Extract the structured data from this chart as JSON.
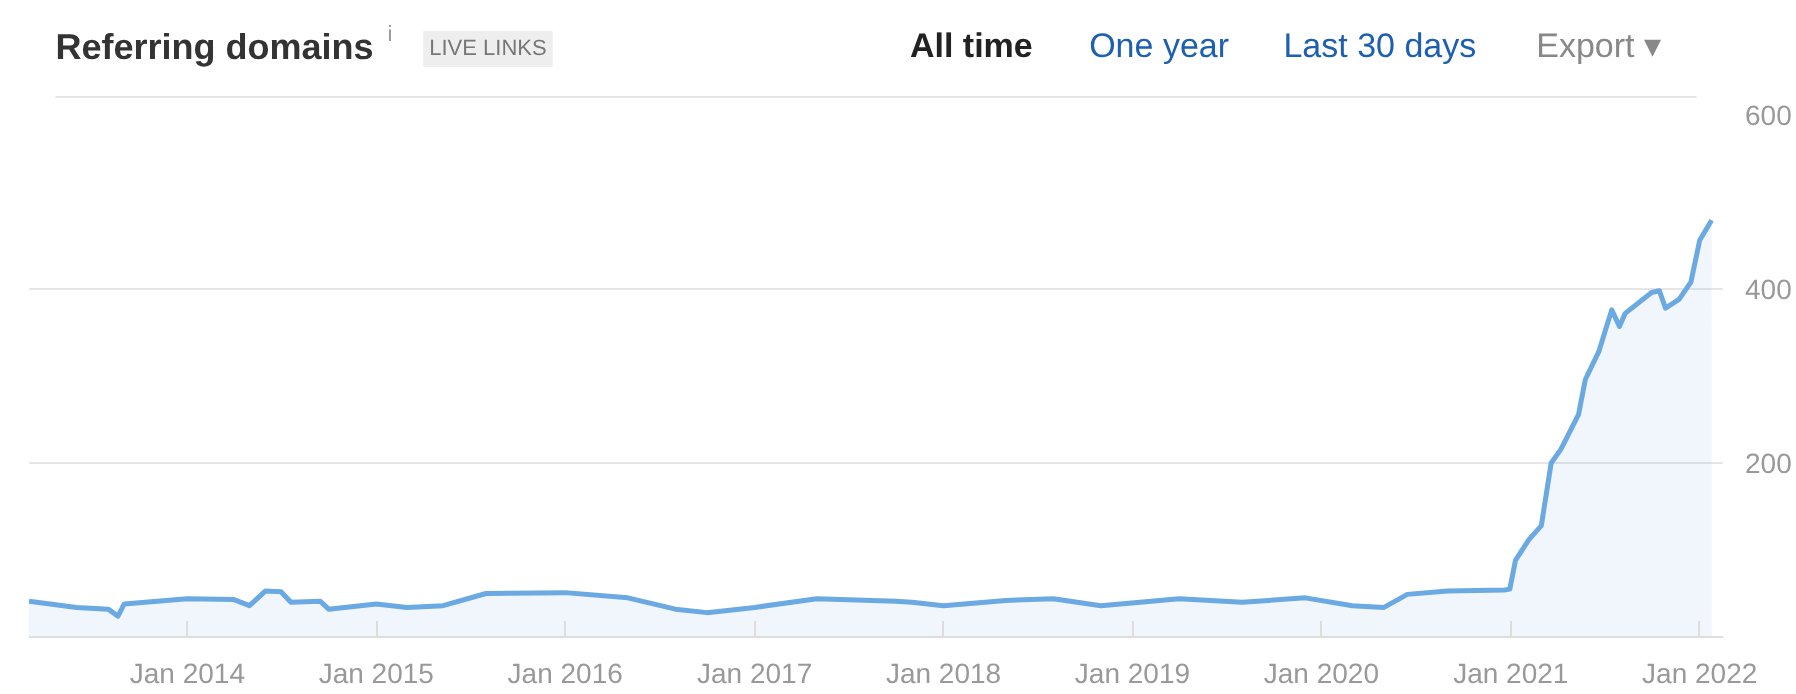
{
  "chart_data": {
    "type": "area",
    "title": "Referring domains",
    "annotations": [
      "i",
      "LIVE LINKS",
      "All time",
      "One year",
      "Last 30 days",
      "Export ▾"
    ],
    "x": [
      "2013-03-01",
      "2013-06-01",
      "2013-08-01",
      "2013-08-20",
      "2013-09-01",
      "2014-01-01",
      "2014-04-01",
      "2014-05-01",
      "2014-06-01",
      "2014-07-01",
      "2014-07-20",
      "2014-09-15",
      "2014-10-01",
      "2015-01-01",
      "2015-03-01",
      "2015-05-10",
      "2015-08-01",
      "2016-01-01",
      "2016-05-01",
      "2016-08-01",
      "2016-10-01",
      "2017-01-01",
      "2017-05-01",
      "2017-10-01",
      "2017-11-01",
      "2018-01-01",
      "2018-05-01",
      "2018-08-01",
      "2018-11-01",
      "2019-04-01",
      "2019-08-01",
      "2019-12-01",
      "2020-03-01",
      "2020-05-01",
      "2020-06-15",
      "2020-09-01",
      "2020-12-20",
      "2020-12-30",
      "2021-01-10",
      "2021-02-05",
      "2021-03-01",
      "2021-03-20",
      "2021-04-08",
      "2021-05-12",
      "2021-05-25",
      "2021-06-20",
      "2021-07-15",
      "2021-07-30",
      "2021-08-10",
      "2021-09-30",
      "2021-10-15",
      "2021-10-27",
      "2021-11-22",
      "2021-12-15",
      "2022-01-01",
      "2022-01-24"
    ],
    "series": [
      {
        "color": "#6aa9e2",
        "values": [
          41,
          34,
          32,
          24,
          38,
          44,
          43,
          36,
          53,
          52,
          40,
          41,
          32,
          38,
          34,
          36,
          50,
          51,
          45,
          32,
          28,
          34,
          44,
          41,
          40,
          36,
          42,
          44,
          36,
          44,
          40,
          45,
          36,
          34,
          49,
          53,
          54,
          55,
          88,
          112,
          128,
          200,
          216,
          256,
          296,
          328,
          376,
          357,
          372,
          396,
          398,
          378,
          388,
          408,
          456,
          479
        ]
      }
    ],
    "xlim": [
      "2013-03-01",
      "2022-02-15"
    ],
    "ylim": [
      0,
      600
    ],
    "xticks": [
      {
        "value": "2014-01-01",
        "label": "Jan 2014"
      },
      {
        "value": "2015-01-01",
        "label": "Jan 2015"
      },
      {
        "value": "2016-01-01",
        "label": "Jan 2016"
      },
      {
        "value": "2017-01-01",
        "label": "Jan 2017"
      },
      {
        "value": "2018-01-01",
        "label": "Jan 2018"
      },
      {
        "value": "2019-01-01",
        "label": "Jan 2019"
      },
      {
        "value": "2020-01-01",
        "label": "Jan 2020"
      },
      {
        "value": "2021-01-01",
        "label": "Jan 2021"
      },
      {
        "value": "2022-01-01",
        "label": "Jan 2022"
      }
    ],
    "yticks": [
      200,
      400,
      600
    ],
    "grid": "y"
  }
}
